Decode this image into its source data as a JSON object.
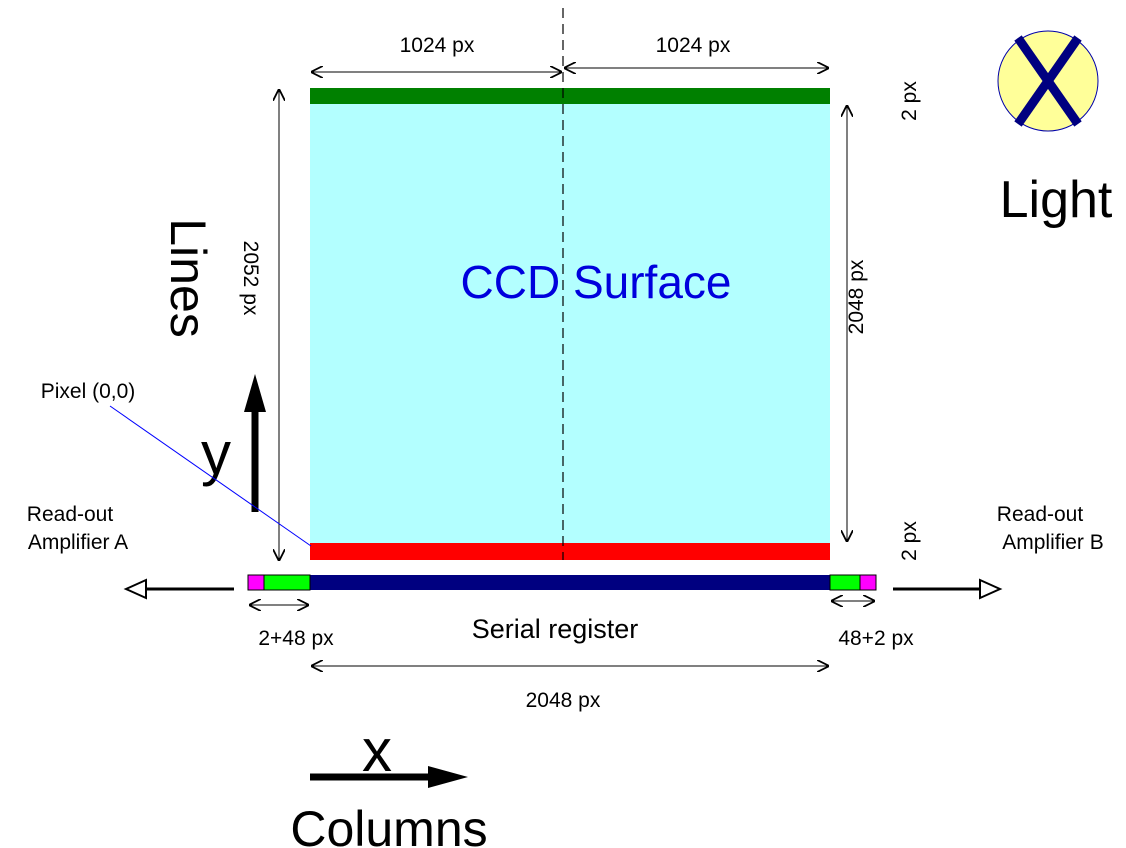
{
  "dimensions": {
    "top_left_width": "1024 px",
    "top_right_width": "1024 px",
    "top_band_height": "2 px",
    "total_lines": "2052 px",
    "surface_lines": "2048 px",
    "bottom_band_height": "2 px",
    "left_prescan": "2+48 px",
    "right_prescan": "48+2 px",
    "register_width": "2048 px"
  },
  "labels": {
    "surface": "CCD Surface",
    "lines_axis": "Lines",
    "y_axis": "y",
    "pixel_origin": "Pixel (0,0)",
    "amp_a_line1": "Read-out",
    "amp_a_line2": "Amplifier A",
    "amp_b_line1": "Read-out",
    "amp_b_line2": "Amplifier B",
    "serial_register": "Serial register",
    "x_axis": "x",
    "columns_axis": "Columns",
    "light": "Light"
  },
  "colors": {
    "surface": "#b3ffff",
    "top_band": "#008000",
    "bottom_band": "#ff0000",
    "register": "#000080",
    "prescan_green": "#00ff00",
    "prescan_magenta": "#ff00ff",
    "surface_text": "#0000dd",
    "light_fill": "#ffff99",
    "light_cross": "#000080",
    "pixel_pointer": "#0000ff"
  },
  "icons": {
    "light": "light-cross-icon"
  }
}
